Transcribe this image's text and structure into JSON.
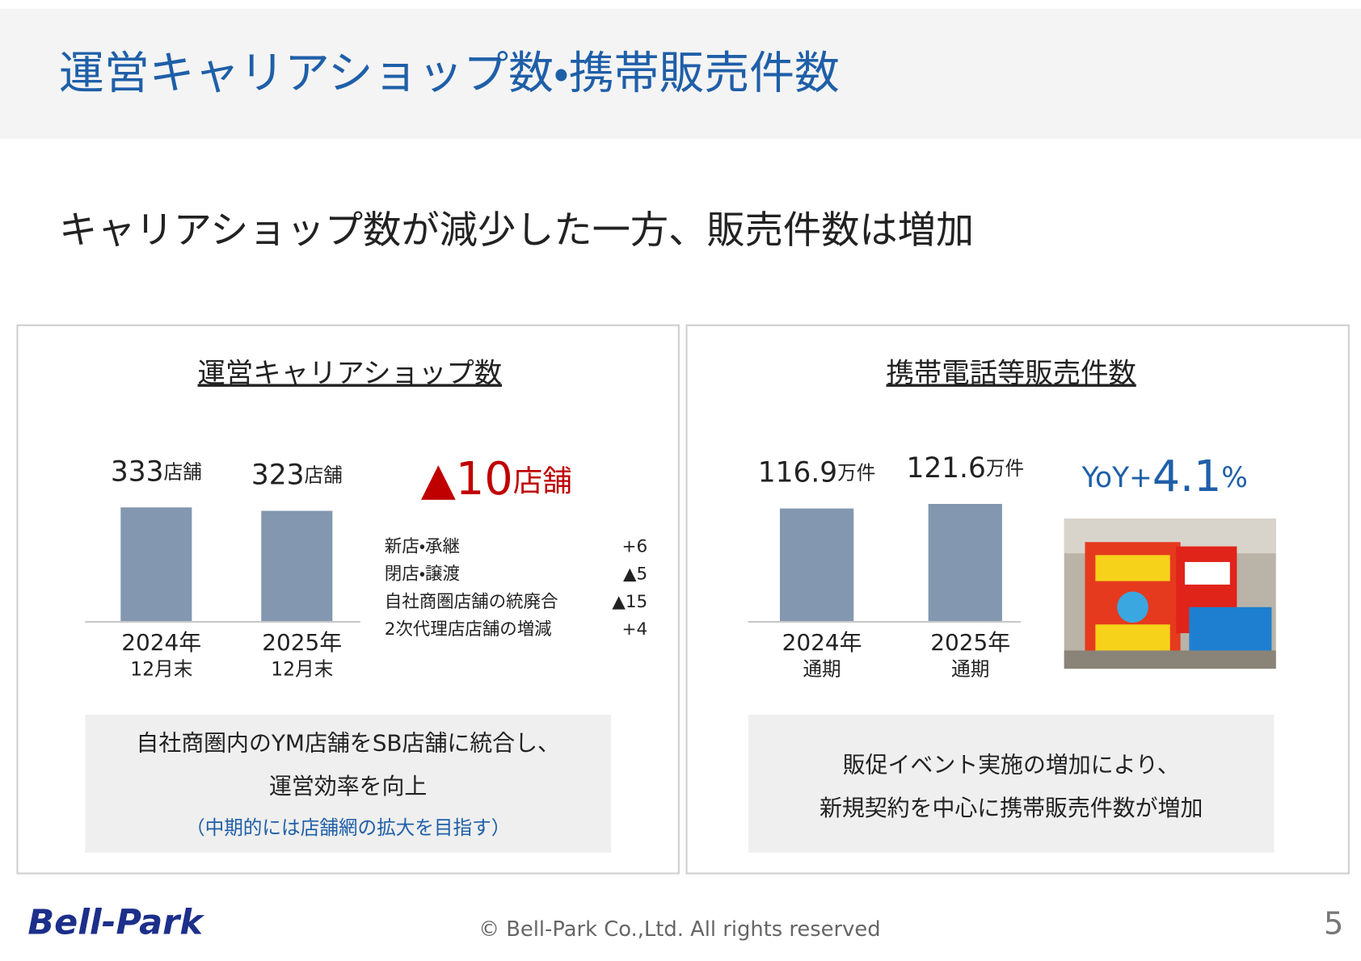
{
  "header": {
    "title": "運営キャリアショップ数・携帯販売件数"
  },
  "headline": "キャリアショップ数が減少した一方、販売件数は増加",
  "chart_data": [
    {
      "type": "bar",
      "title": "運営キャリアショップ数",
      "categories": [
        "2024年",
        "2025年"
      ],
      "category_sublabels": [
        "12月末",
        "12月末"
      ],
      "values": [
        333,
        323
      ],
      "unit": "店舗",
      "color": "#8497b0",
      "change": {
        "label": "▲10",
        "unit": "店舗"
      },
      "breakdown": [
        {
          "label": "新店・承継",
          "value": "+6"
        },
        {
          "label": "閉店・譲渡",
          "value": "▲5"
        },
        {
          "label": "自社商圏店舗の統廃合",
          "value": "▲15"
        },
        {
          "label": "2次代理店店舗の増減",
          "value": "+4"
        }
      ],
      "note": [
        "自社商圏内のYM店舗をSB店舗に統合し、",
        "運営効率を向上",
        "（中期的には店舗網の拡大を目指す）"
      ]
    },
    {
      "type": "bar",
      "title": "携帯電話等販売件数",
      "categories": [
        "2024年",
        "2025年"
      ],
      "category_sublabels": [
        "通期",
        "通期"
      ],
      "values": [
        116.9,
        121.6
      ],
      "unit": "万件",
      "color": "#8497b0",
      "yoy": {
        "prefix": "YoY+",
        "value": 4.1,
        "unit": "%"
      },
      "note": [
        "販促イベント実施の増加により、",
        "新規契約を中心に携帯販売件数が増加"
      ]
    }
  ],
  "footer": {
    "logo": "Bell-Park",
    "copyright": "© Bell-Park Co.,Ltd. All rights reserved",
    "page": "5"
  }
}
